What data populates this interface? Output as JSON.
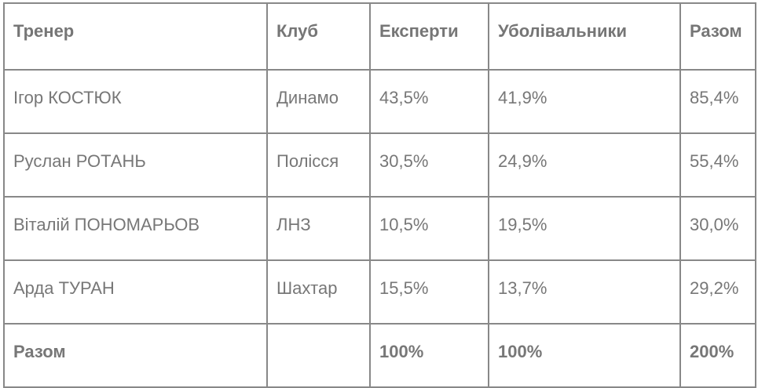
{
  "table": {
    "headers": [
      "Тренер",
      "Клуб",
      "Експерти",
      "Уболівальники",
      "Разом"
    ],
    "rows": [
      [
        "Ігор КОСТЮК",
        "Динамо",
        "43,5%",
        "41,9%",
        "85,4%"
      ],
      [
        "Руслан РОТАНЬ",
        "Полісся",
        "30,5%",
        "24,9%",
        "55,4%"
      ],
      [
        "Віталій ПОНОМАРЬОВ",
        "ЛНЗ",
        "10,5%",
        "19,5%",
        "30,0%"
      ],
      [
        "Арда ТУРАН",
        "Шахтар",
        "15,5%",
        "13,7%",
        "29,2%"
      ]
    ],
    "total": [
      "Разом",
      "",
      "100%",
      "100%",
      "200%"
    ]
  }
}
